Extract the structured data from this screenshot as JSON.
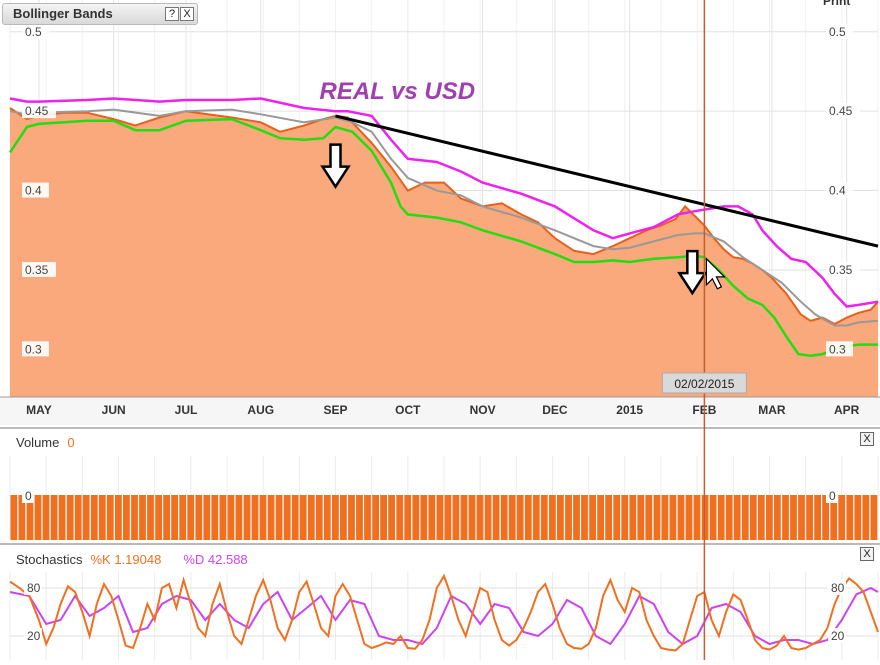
{
  "panel": {
    "title": "Bollinger Bands",
    "help_label": "?",
    "close_label": "X",
    "print_label": "Print",
    "annotation": "REAL vs USD",
    "crosshair_date": "02/02/2015"
  },
  "volume": {
    "title": "Volume",
    "value": "0",
    "close_label": "X"
  },
  "stochastics": {
    "title": "Stochastics",
    "k_label": "%K 1.19048",
    "d_label": "%D 42.588",
    "close_label": "X"
  },
  "colors": {
    "price_fill": "#f9a97c",
    "price_line": "#e8601c",
    "upper_band": "#ee22ee",
    "lower_band": "#22dd11",
    "middle_band": "#999999",
    "trendline": "#000000",
    "crosshair": "#c0602f",
    "annotation": "#a040b0",
    "volume_bar": "#f07020",
    "k_line": "#f07020",
    "d_line": "#cc44ee"
  },
  "chart_data": [
    {
      "type": "area",
      "x_ticks": [
        "MAY",
        "JUN",
        "JUL",
        "AUG",
        "SEP",
        "OCT",
        "NOV",
        "DEC",
        "2015",
        "FEB",
        "MAR",
        "APR"
      ],
      "x_tick_days": [
        0,
        31,
        61,
        92,
        123,
        153,
        184,
        214,
        245,
        276,
        304,
        335
      ],
      "ylim": [
        0.27,
        0.52
      ],
      "y_ticks": [
        "0.5",
        "0.45",
        "0.4",
        "0.35",
        "0.3"
      ],
      "y_tick_values": [
        0.5,
        0.45,
        0.4,
        0.35,
        0.3
      ],
      "x_range_days": [
        -12,
        348
      ],
      "series": [
        {
          "name": "",
          "role": "price",
          "x": [
            -12,
            -5,
            0,
            10,
            20,
            31,
            40,
            50,
            61,
            70,
            80,
            92,
            100,
            110,
            118,
            123,
            128,
            138,
            146,
            153,
            160,
            168,
            175,
            184,
            192,
            200,
            207,
            214,
            222,
            230,
            238,
            245,
            252,
            258,
            264,
            268,
            272,
            276,
            280,
            284,
            288,
            292,
            296,
            300,
            304,
            310,
            316,
            320,
            325,
            330,
            335,
            340,
            345,
            348
          ],
          "y": [
            0.452,
            0.445,
            0.447,
            0.449,
            0.449,
            0.445,
            0.441,
            0.446,
            0.45,
            0.448,
            0.446,
            0.443,
            0.437,
            0.441,
            0.445,
            0.447,
            0.446,
            0.43,
            0.415,
            0.4,
            0.405,
            0.405,
            0.395,
            0.39,
            0.392,
            0.385,
            0.38,
            0.37,
            0.362,
            0.36,
            0.365,
            0.37,
            0.375,
            0.378,
            0.382,
            0.39,
            0.384,
            0.378,
            0.37,
            0.363,
            0.358,
            0.357,
            0.354,
            0.35,
            0.345,
            0.335,
            0.322,
            0.318,
            0.32,
            0.316,
            0.32,
            0.323,
            0.325,
            0.33
          ]
        },
        {
          "name": "",
          "role": "upper-band",
          "x": [
            -12,
            -5,
            0,
            20,
            31,
            50,
            61,
            80,
            92,
            110,
            123,
            128,
            138,
            146,
            153,
            165,
            175,
            184,
            200,
            214,
            230,
            238,
            245,
            255,
            265,
            272,
            276,
            284,
            290,
            296,
            300,
            306,
            312,
            318,
            325,
            330,
            335,
            340,
            348
          ],
          "y": [
            0.458,
            0.456,
            0.456,
            0.457,
            0.458,
            0.456,
            0.457,
            0.457,
            0.458,
            0.452,
            0.45,
            0.45,
            0.447,
            0.432,
            0.42,
            0.418,
            0.412,
            0.405,
            0.398,
            0.39,
            0.375,
            0.37,
            0.373,
            0.377,
            0.385,
            0.387,
            0.388,
            0.39,
            0.39,
            0.385,
            0.375,
            0.365,
            0.357,
            0.355,
            0.345,
            0.335,
            0.327,
            0.328,
            0.33
          ]
        },
        {
          "name": "",
          "role": "lower-band",
          "x": [
            -12,
            -5,
            0,
            20,
            31,
            40,
            50,
            61,
            80,
            92,
            100,
            110,
            118,
            123,
            130,
            138,
            146,
            150,
            153,
            165,
            175,
            184,
            200,
            214,
            222,
            230,
            238,
            245,
            255,
            265,
            272,
            276,
            282,
            288,
            294,
            300,
            305,
            310,
            315,
            320,
            325,
            330,
            335,
            340,
            348
          ],
          "y": [
            0.424,
            0.44,
            0.442,
            0.444,
            0.444,
            0.438,
            0.438,
            0.444,
            0.445,
            0.438,
            0.433,
            0.432,
            0.433,
            0.44,
            0.437,
            0.425,
            0.405,
            0.39,
            0.385,
            0.383,
            0.38,
            0.375,
            0.368,
            0.36,
            0.355,
            0.355,
            0.356,
            0.355,
            0.357,
            0.358,
            0.359,
            0.358,
            0.35,
            0.34,
            0.332,
            0.328,
            0.32,
            0.308,
            0.297,
            0.296,
            0.297,
            0.3,
            0.302,
            0.303,
            0.303
          ]
        },
        {
          "name": "",
          "role": "middle-band",
          "x": [
            -12,
            -5,
            0,
            20,
            31,
            50,
            61,
            80,
            92,
            110,
            123,
            130,
            138,
            146,
            153,
            165,
            175,
            184,
            200,
            214,
            230,
            238,
            245,
            255,
            265,
            272,
            276,
            284,
            292,
            300,
            308,
            316,
            322,
            330,
            335,
            340,
            348
          ],
          "y": [
            0.45,
            0.448,
            0.449,
            0.45,
            0.451,
            0.447,
            0.45,
            0.451,
            0.448,
            0.443,
            0.446,
            0.443,
            0.437,
            0.42,
            0.408,
            0.4,
            0.397,
            0.39,
            0.383,
            0.375,
            0.365,
            0.363,
            0.364,
            0.368,
            0.372,
            0.373,
            0.373,
            0.368,
            0.358,
            0.35,
            0.342,
            0.33,
            0.322,
            0.315,
            0.315,
            0.317,
            0.318
          ]
        }
      ],
      "trendline": {
        "x": [
          123,
          348
        ],
        "y": [
          0.447,
          0.365
        ]
      },
      "crosshair_day": 276,
      "annotation": {
        "text": "REAL vs USD",
        "x": 123,
        "y": 0.455
      },
      "arrows": [
        {
          "x": 123,
          "y": 0.41
        },
        {
          "x": 271,
          "y": 0.343
        }
      ]
    },
    {
      "type": "bar",
      "title": "Volume",
      "ylim": [
        0,
        1
      ],
      "y_ticks": [
        "0"
      ],
      "values": [
        0
      ],
      "bar_count": 108
    },
    {
      "type": "line",
      "title": "Stochastics",
      "ylim": [
        0,
        100
      ],
      "y_ticks": [
        "80",
        "20"
      ],
      "y_tick_values": [
        80,
        20
      ],
      "series": [
        {
          "name": "%K 1.19048",
          "x": [
            -12,
            -8,
            -4,
            0,
            3,
            6,
            9,
            12,
            15,
            18,
            21,
            24,
            27,
            30,
            33,
            36,
            39,
            42,
            45,
            48,
            51,
            54,
            57,
            60,
            63,
            66,
            69,
            72,
            75,
            78,
            81,
            84,
            87,
            90,
            93,
            96,
            99,
            102,
            105,
            108,
            111,
            114,
            117,
            120,
            123,
            126,
            129,
            132,
            135,
            138,
            141,
            144,
            147,
            150,
            153,
            156,
            159,
            162,
            165,
            168,
            171,
            174,
            177,
            180,
            183,
            186,
            189,
            192,
            195,
            198,
            201,
            204,
            207,
            210,
            213,
            216,
            219,
            222,
            225,
            228,
            231,
            234,
            237,
            240,
            243,
            246,
            249,
            252,
            255,
            258,
            261,
            264,
            267,
            270,
            273,
            276,
            279,
            282,
            285,
            288,
            291,
            294,
            297,
            300,
            303,
            306,
            309,
            312,
            315,
            318,
            321,
            324,
            327,
            330,
            333,
            336,
            339,
            342,
            345,
            348
          ],
          "y": [
            88,
            80,
            70,
            40,
            10,
            30,
            60,
            82,
            75,
            50,
            20,
            60,
            85,
            70,
            40,
            8,
            5,
            30,
            60,
            40,
            80,
            85,
            55,
            90,
            60,
            30,
            20,
            60,
            85,
            50,
            20,
            10,
            40,
            70,
            90,
            65,
            30,
            15,
            40,
            75,
            88,
            60,
            30,
            20,
            70,
            85,
            70,
            40,
            10,
            5,
            8,
            12,
            10,
            20,
            5,
            4,
            15,
            40,
            80,
            95,
            70,
            40,
            20,
            50,
            80,
            75,
            40,
            15,
            8,
            15,
            30,
            50,
            75,
            85,
            60,
            30,
            10,
            5,
            4,
            10,
            30,
            70,
            90,
            65,
            50,
            80,
            75,
            40,
            20,
            5,
            3,
            2,
            10,
            40,
            70,
            75,
            40,
            20,
            50,
            72,
            65,
            40,
            15,
            5,
            3,
            8,
            20,
            5,
            3,
            5,
            10,
            15,
            30,
            60,
            80,
            92,
            85,
            75,
            50,
            25
          ]
        },
        {
          "name": "%D 42.588",
          "x": [
            -12,
            -4,
            3,
            9,
            15,
            21,
            27,
            33,
            39,
            45,
            51,
            57,
            63,
            69,
            75,
            81,
            87,
            93,
            99,
            105,
            111,
            117,
            123,
            129,
            135,
            141,
            147,
            153,
            159,
            165,
            171,
            177,
            183,
            189,
            195,
            201,
            207,
            213,
            219,
            225,
            231,
            237,
            243,
            249,
            255,
            261,
            267,
            273,
            279,
            285,
            291,
            297,
            303,
            309,
            315,
            321,
            327,
            333,
            339,
            345,
            348
          ],
          "y": [
            75,
            70,
            35,
            40,
            70,
            45,
            55,
            70,
            25,
            30,
            60,
            70,
            65,
            40,
            60,
            40,
            30,
            60,
            75,
            40,
            55,
            70,
            40,
            65,
            60,
            20,
            15,
            15,
            10,
            30,
            70,
            60,
            35,
            60,
            55,
            25,
            20,
            35,
            65,
            55,
            20,
            10,
            35,
            70,
            60,
            25,
            10,
            20,
            55,
            60,
            50,
            20,
            10,
            15,
            15,
            10,
            15,
            40,
            72,
            80,
            75
          ]
        }
      ]
    }
  ]
}
